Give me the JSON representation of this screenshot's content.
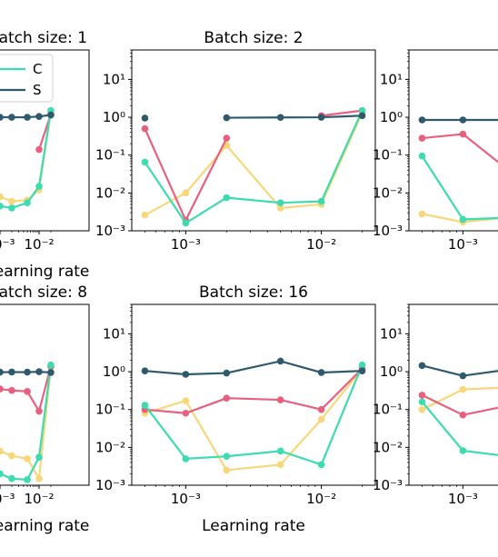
{
  "figure": {
    "xlabel": "Learning rate"
  },
  "colors": {
    "C": "#3ddbb0",
    "S": "#2f5a6e",
    "pink": "#e8607e",
    "yellow": "#f8d77a"
  },
  "chart_data": [
    {
      "type": "line",
      "title": "Batch size: 1",
      "xscale": "log",
      "yscale": "log",
      "xlim": [
        0.0004,
        0.025
      ],
      "ylim": [
        0.001,
        60
      ],
      "xticks": [
        {
          "v": 0.001,
          "label": "10⁻³"
        },
        {
          "v": 0.01,
          "label": "10⁻²"
        }
      ],
      "yticks": [
        {
          "v": 0.001,
          "label": "10⁻³"
        },
        {
          "v": 0.01,
          "label": "10⁻²"
        },
        {
          "v": 0.1,
          "label": "10⁻¹"
        },
        {
          "v": 1,
          "label": "10⁰"
        },
        {
          "v": 10,
          "label": "10¹"
        }
      ],
      "xlabel": "Learning rate",
      "legend": {
        "position": "top-left",
        "entries": [
          {
            "name": "C",
            "color": "C"
          },
          {
            "name": "S",
            "color": "S"
          }
        ]
      },
      "series": [
        {
          "name": "C",
          "color": "C",
          "x": [
            0.0005,
            0.001,
            0.002,
            0.005,
            0.01,
            0.02
          ],
          "y": [
            0.008,
            0.0045,
            0.004,
            0.0055,
            0.015,
            1.5
          ]
        },
        {
          "name": "S",
          "color": "S",
          "x": [
            0.0005,
            0.001,
            0.002,
            0.005,
            0.01,
            0.02
          ],
          "y": [
            0.9,
            1.0,
            1.0,
            1.0,
            1.05,
            1.15
          ]
        },
        {
          "color": "pink",
          "x": [
            0.01,
            0.02
          ],
          "y": [
            0.14,
            1.2
          ]
        },
        {
          "color": "yellow",
          "x": [
            0.0005,
            0.001,
            0.002,
            0.005,
            0.01,
            0.02
          ],
          "y": [
            0.02,
            0.008,
            0.006,
            0.0065,
            0.012,
            1.4
          ]
        }
      ]
    },
    {
      "type": "line",
      "title": "Batch size: 2",
      "xscale": "log",
      "yscale": "log",
      "xlim": [
        0.0004,
        0.025
      ],
      "ylim": [
        0.001,
        60
      ],
      "xticks": [
        {
          "v": 0.001,
          "label": "10⁻³"
        },
        {
          "v": 0.01,
          "label": "10⁻²"
        }
      ],
      "yticks": [
        {
          "v": 0.001,
          "label": "10⁻³"
        },
        {
          "v": 0.01,
          "label": "10⁻²"
        },
        {
          "v": 0.1,
          "label": "10⁻¹"
        },
        {
          "v": 1,
          "label": "10⁰"
        },
        {
          "v": 10,
          "label": "10¹"
        }
      ],
      "series": [
        {
          "name": "C",
          "color": "C",
          "x": [
            0.0005,
            0.001,
            0.002,
            0.005,
            0.01,
            0.02
          ],
          "y": [
            0.065,
            0.0016,
            0.0075,
            0.0055,
            0.006,
            1.5
          ]
        },
        {
          "name": "S",
          "color": "S",
          "x": [
            0.0005
          ],
          "y": [
            0.95
          ]
        },
        {
          "name": "S",
          "color": "S",
          "x": [
            0.002,
            0.005,
            0.01,
            0.02
          ],
          "y": [
            0.97,
            0.99,
            1.0,
            1.1
          ]
        },
        {
          "color": "pink",
          "x": [
            0.0005,
            0.001,
            0.002
          ],
          "y": [
            0.5,
            0.0019,
            0.28
          ]
        },
        {
          "color": "pink",
          "x": [
            0.01,
            0.02
          ],
          "y": [
            1.1,
            1.5
          ]
        },
        {
          "color": "yellow",
          "x": [
            0.0005,
            0.001,
            0.002,
            0.005,
            0.01,
            0.02
          ],
          "y": [
            0.0026,
            0.01,
            0.18,
            0.004,
            0.005,
            1.3
          ]
        }
      ]
    },
    {
      "type": "line",
      "title": "B",
      "xscale": "log",
      "yscale": "log",
      "xlim": [
        0.0004,
        0.025
      ],
      "ylim": [
        0.001,
        60
      ],
      "xticks": [
        {
          "v": 0.001,
          "label": "10⁻³"
        },
        {
          "v": 0.01,
          "label": "10⁻²"
        }
      ],
      "yticks": [
        {
          "v": 0.001,
          "label": "10⁻³"
        },
        {
          "v": 0.01,
          "label": "10⁻²"
        },
        {
          "v": 0.1,
          "label": "10⁻¹"
        },
        {
          "v": 1,
          "label": "10⁰"
        },
        {
          "v": 10,
          "label": "10¹"
        }
      ],
      "series": [
        {
          "name": "C",
          "color": "C",
          "x": [
            0.0005,
            0.001,
            0.002
          ],
          "y": [
            0.095,
            0.002,
            0.0022
          ]
        },
        {
          "name": "S",
          "color": "S",
          "x": [
            0.0005,
            0.001,
            0.002
          ],
          "y": [
            0.85,
            0.85,
            0.85
          ]
        },
        {
          "color": "pink",
          "x": [
            0.0005,
            0.001,
            0.002
          ],
          "y": [
            0.28,
            0.36,
            0.05
          ]
        },
        {
          "color": "yellow",
          "x": [
            0.0005,
            0.001,
            0.002
          ],
          "y": [
            0.0028,
            0.0017,
            0.0022
          ]
        }
      ]
    },
    {
      "type": "line",
      "title": "Batch size: 8",
      "xscale": "log",
      "yscale": "log",
      "xlim": [
        0.0004,
        0.025
      ],
      "ylim": [
        0.001,
        60
      ],
      "xticks": [
        {
          "v": 0.001,
          "label": "10⁻³"
        },
        {
          "v": 0.01,
          "label": "10⁻²"
        }
      ],
      "yticks": [
        {
          "v": 0.001,
          "label": "10⁻³"
        },
        {
          "v": 0.01,
          "label": "10⁻²"
        },
        {
          "v": 0.1,
          "label": "10⁻¹"
        },
        {
          "v": 1,
          "label": "10⁰"
        },
        {
          "v": 10,
          "label": "10¹"
        }
      ],
      "xlabel": "Learning rate",
      "series": [
        {
          "name": "C",
          "color": "C",
          "x": [
            0.0005,
            0.001,
            0.002,
            0.005,
            0.01,
            0.02
          ],
          "y": [
            0.003,
            0.002,
            0.0015,
            0.0014,
            0.0055,
            1.5
          ]
        },
        {
          "name": "S",
          "color": "S",
          "x": [
            0.0005,
            0.001,
            0.002,
            0.005,
            0.01,
            0.02
          ],
          "y": [
            0.95,
            0.97,
            0.98,
            0.97,
            1.0,
            0.95
          ]
        },
        {
          "color": "pink",
          "x": [
            0.0005,
            0.001,
            0.002,
            0.005,
            0.01,
            0.02
          ],
          "y": [
            0.4,
            0.35,
            0.32,
            0.3,
            0.09,
            1.4
          ]
        },
        {
          "color": "yellow",
          "x": [
            0.0005,
            0.001,
            0.002,
            0.005,
            0.01,
            0.02
          ],
          "y": [
            0.01,
            0.008,
            0.006,
            0.005,
            0.0015,
            1.3
          ]
        }
      ]
    },
    {
      "type": "line",
      "title": "Batch size: 16",
      "xscale": "log",
      "yscale": "log",
      "xlim": [
        0.0004,
        0.025
      ],
      "ylim": [
        0.001,
        60
      ],
      "xticks": [
        {
          "v": 0.001,
          "label": "10⁻³"
        },
        {
          "v": 0.01,
          "label": "10⁻²"
        }
      ],
      "yticks": [
        {
          "v": 0.001,
          "label": "10⁻³"
        },
        {
          "v": 0.01,
          "label": "10⁻²"
        },
        {
          "v": 0.1,
          "label": "10⁻¹"
        },
        {
          "v": 1,
          "label": "10⁰"
        },
        {
          "v": 10,
          "label": "10¹"
        }
      ],
      "xlabel": "Learning rate",
      "series": [
        {
          "name": "C",
          "color": "C",
          "x": [
            0.0005,
            0.001,
            0.002,
            0.005,
            0.01,
            0.02
          ],
          "y": [
            0.13,
            0.005,
            0.0058,
            0.008,
            0.0035,
            1.5
          ]
        },
        {
          "name": "S",
          "color": "S",
          "x": [
            0.0005,
            0.001,
            0.002,
            0.005,
            0.01,
            0.02
          ],
          "y": [
            1.05,
            0.85,
            0.92,
            1.9,
            0.95,
            1.05
          ]
        },
        {
          "color": "pink",
          "x": [
            0.0005,
            0.001,
            0.002,
            0.005,
            0.01,
            0.02
          ],
          "y": [
            0.1,
            0.08,
            0.2,
            0.18,
            0.1,
            1.2
          ]
        },
        {
          "color": "yellow",
          "x": [
            0.0005,
            0.001,
            0.002,
            0.005,
            0.01,
            0.02
          ],
          "y": [
            0.08,
            0.17,
            0.0025,
            0.0035,
            0.055,
            1.2
          ]
        }
      ]
    },
    {
      "type": "line",
      "title": "Ba",
      "xscale": "log",
      "yscale": "log",
      "xlim": [
        0.0004,
        0.025
      ],
      "ylim": [
        0.001,
        60
      ],
      "xticks": [
        {
          "v": 0.001,
          "label": "10⁻³"
        },
        {
          "v": 0.01,
          "label": "10⁻²"
        }
      ],
      "yticks": [
        {
          "v": 0.001,
          "label": "10⁻³"
        },
        {
          "v": 0.01,
          "label": "10⁻²"
        },
        {
          "v": 0.1,
          "label": "10⁻¹"
        },
        {
          "v": 1,
          "label": "10⁰"
        },
        {
          "v": 10,
          "label": "10¹"
        }
      ],
      "xlabel": "Le",
      "series": [
        {
          "name": "C",
          "color": "C",
          "x": [
            0.0005,
            0.001,
            0.002
          ],
          "y": [
            0.16,
            0.0082,
            0.006
          ]
        },
        {
          "name": "S",
          "color": "S",
          "x": [
            0.0005,
            0.001,
            0.002
          ],
          "y": [
            1.45,
            0.78,
            1.1
          ]
        },
        {
          "color": "pink",
          "x": [
            0.0005,
            0.001,
            0.002
          ],
          "y": [
            0.24,
            0.072,
            0.12
          ]
        },
        {
          "color": "yellow",
          "x": [
            0.0005,
            0.001,
            0.002
          ],
          "y": [
            0.1,
            0.34,
            0.38
          ]
        }
      ]
    }
  ]
}
